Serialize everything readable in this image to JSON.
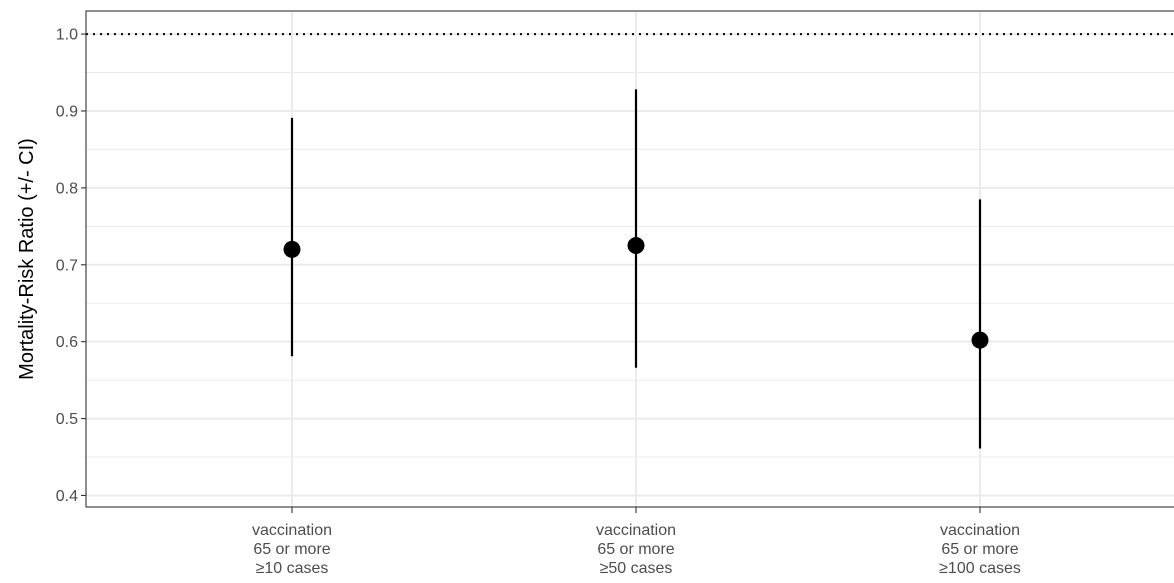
{
  "chart_data": {
    "type": "scatter",
    "title": "",
    "xlabel": "",
    "ylabel": "Mortality-Risk Ratio (+/- CI)",
    "ylim": [
      0.385,
      1.03
    ],
    "yticks": [
      "0.4",
      "0.5",
      "0.6",
      "0.7",
      "0.8",
      "0.9",
      "1.0"
    ],
    "reference_line": 1.0,
    "grid": true,
    "categories": [
      [
        "vaccination",
        "65 or more",
        "≥10 cases"
      ],
      [
        "vaccination",
        "65 or more",
        "≥50 cases"
      ],
      [
        "vaccination",
        "65 or more",
        "≥100 cases"
      ]
    ],
    "points": [
      {
        "estimate": 0.72,
        "lower": 0.581,
        "upper": 0.891
      },
      {
        "estimate": 0.725,
        "lower": 0.566,
        "upper": 0.928
      },
      {
        "estimate": 0.602,
        "lower": 0.461,
        "upper": 0.785
      }
    ],
    "colors": {
      "point": "#000000",
      "grid": "#ebebeb",
      "border": "#333333",
      "reference": "#000000"
    }
  }
}
